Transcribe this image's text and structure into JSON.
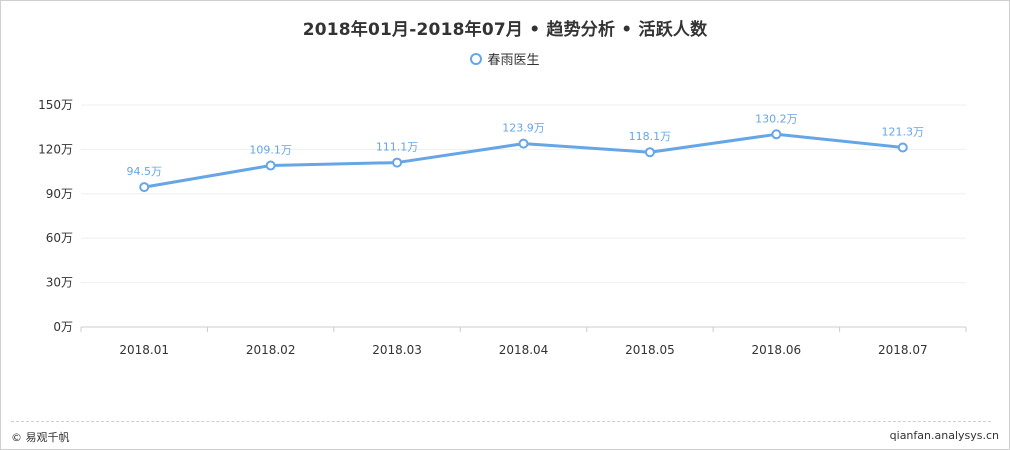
{
  "title": "2018年01月-2018年07月 • 趋势分析 • 活跃人数",
  "footer": {
    "left": "© 易观千帆",
    "right": "qianfan.analysys.cn"
  },
  "colors": {
    "series": "#66a6e6",
    "axis_text": "#333333",
    "grid": "#efefef"
  },
  "chart_data": {
    "type": "line",
    "title": "2018年01月-2018年07月 • 趋势分析 • 活跃人数",
    "xlabel": "",
    "ylabel": "",
    "categories": [
      "2018.01",
      "2018.02",
      "2018.03",
      "2018.04",
      "2018.05",
      "2018.06",
      "2018.07"
    ],
    "series": [
      {
        "name": "春雨医生",
        "values": [
          94.5,
          109.1,
          111.1,
          123.9,
          118.1,
          130.2,
          121.3
        ],
        "data_labels": [
          "94.5万",
          "109.1万",
          "111.1万",
          "123.9万",
          "118.1万",
          "130.2万",
          "121.3万"
        ]
      }
    ],
    "ylim": [
      0,
      150
    ],
    "yticks": [
      0,
      30,
      60,
      90,
      120,
      150
    ],
    "ytick_labels": [
      "0万",
      "30万",
      "60万",
      "90万",
      "120万",
      "150万"
    ],
    "grid": true,
    "legend_position": "top-center"
  }
}
